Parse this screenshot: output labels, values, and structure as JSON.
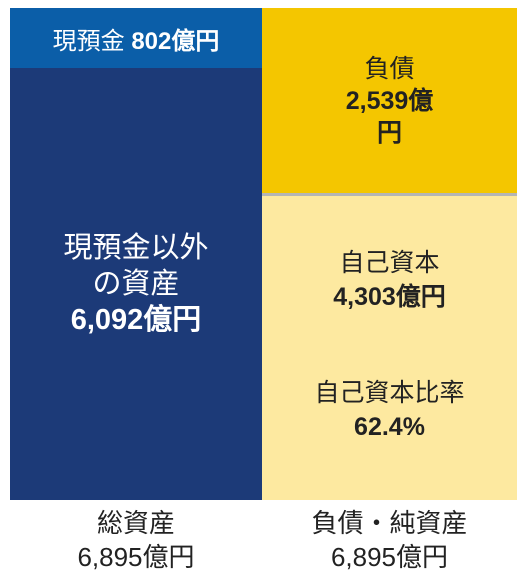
{
  "assets": {
    "cash": {
      "label": "現預金",
      "amount": "802億円"
    },
    "other": {
      "label": "現預金以外の資産",
      "amount": "6,092億円"
    },
    "total": {
      "label": "総資産",
      "amount": "6,895億円"
    }
  },
  "liabilities_equity": {
    "liabilities": {
      "label": "負債",
      "amount": "2,539億円"
    },
    "equity": {
      "label": "自己資本",
      "amount": "4,303億円"
    },
    "equity_ratio": {
      "label": "自己資本比率",
      "amount": "62.4%"
    },
    "total": {
      "label": "負債・純資産",
      "amount": "6,895億円"
    }
  }
}
